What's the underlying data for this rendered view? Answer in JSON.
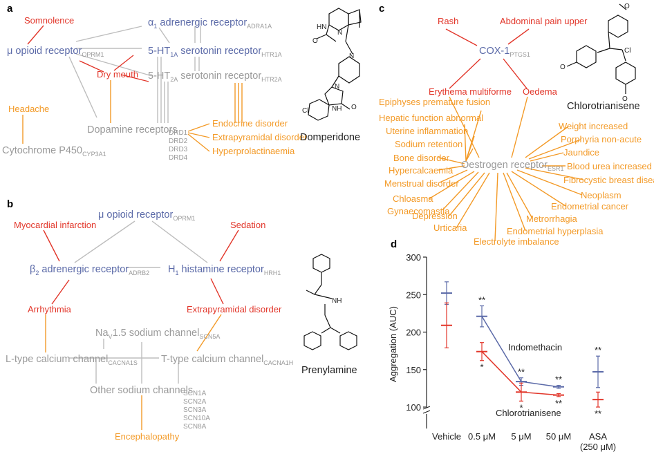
{
  "colors": {
    "blue": "#5b6aa8",
    "red": "#e2362a",
    "orange": "#f39a27",
    "grey": "#9a9a9a",
    "dark": "#222222"
  },
  "panel_a": {
    "label": "a",
    "drug": "Domperidone",
    "targets": {
      "alpha1": {
        "pre": "α",
        "sub1": "1",
        "main": " adrenergic receptor",
        "gene": "ADRA1A"
      },
      "mu": {
        "main": "μ opioid receptor",
        "gene": "OPRM1"
      },
      "ht1a": {
        "pre": "5-HT",
        "sub1": "1A",
        "main": " serotonin receptor",
        "gene": "HTR1A"
      },
      "ht2a": {
        "pre": "5-HT",
        "sub1": "2A",
        "main": " serotonin receptor",
        "gene": "HTR2A"
      },
      "dopamine": {
        "main": "Dopamine receptors",
        "genes": [
          "DRD1",
          "DRD2",
          "DRD3",
          "DRD4"
        ]
      },
      "cyp": {
        "main": "Cytochrome P450",
        "gene": "CYP3A1"
      }
    },
    "effects": {
      "somnolence": "Somnolence",
      "drymouth": "Dry mouth",
      "headache": "Headache",
      "endocrine": "Endocrine disorder",
      "extrapyramidal": "Extrapyramidal disorder",
      "hyperprolactinaemia": "Hyperprolactinaemia"
    }
  },
  "panel_b": {
    "label": "b",
    "drug": "Prenylamine",
    "targets": {
      "mu": {
        "main": "μ opioid receptor",
        "gene": "OPRM1"
      },
      "beta2": {
        "pre": "β",
        "sub1": "2",
        "main": " adrenergic receptor",
        "gene": "ADRB2"
      },
      "h1": {
        "pre": "H",
        "sub1": "1",
        "main": " histamine receptor",
        "gene": "HRH1"
      },
      "nav": {
        "pre": "Na",
        "sub1": "V",
        "main": "1.5 sodium channel",
        "gene": "SCN5A"
      },
      "ltype": {
        "main": "L-type calcium channel",
        "gene": "CACNA1S"
      },
      "ttype": {
        "main": "T-type calcium channel",
        "gene": "CACNA1H"
      },
      "othersodium": {
        "main": "Other sodium channels",
        "genes": [
          "SCN1A",
          "SCN2A",
          "SCN3A",
          "SCN10A",
          "SCN8A"
        ]
      }
    },
    "effects": {
      "mi": "Myocardial infarction",
      "sedation": "Sedation",
      "arrhythmia": "Arrhythmia",
      "extrapyramidal": "Extrapyramidal disorder",
      "encephalopathy": "Encephalopathy"
    }
  },
  "panel_c": {
    "label": "c",
    "drug": "Chlorotrianisene",
    "cox": {
      "main": "COX-1",
      "gene": "PTGS1"
    },
    "oestrogen": {
      "main": "Oestrogen receptor",
      "gene": "ESR1"
    },
    "cox_effects": [
      "Rash",
      "Abdominal pain upper",
      "Erythema multiforme",
      "Oedema"
    ],
    "esr_effects": [
      "Epiphyses premature fusion",
      "Hepatic function abnormal",
      "Uterine inflammation",
      "Sodium retention",
      "Bone disorder",
      "Hypercalcaemia",
      "Menstrual disorder",
      "Chloasma",
      "Gynaecomastia",
      "Depression",
      "Urticaria",
      "Electrolyte imbalance",
      "Endometrial hyperplasia",
      "Metrorrhagia",
      "Endometrial cancer",
      "Neoplasm",
      "Fibrocystic breast disease",
      "Blood urea increased",
      "Jaundice",
      "Porphyria non-acute",
      "Weight increased"
    ]
  },
  "chart_data": {
    "type": "line",
    "panel_label": "d",
    "ylabel": "Aggregation (AUC)",
    "ylim": [
      100,
      300
    ],
    "yticks": [
      100,
      150,
      200,
      250,
      300
    ],
    "axis_break": true,
    "categories": [
      "Vehicle",
      "0.5 μM",
      "5 μM",
      "50 μM",
      "ASA (250 μM)"
    ],
    "series": [
      {
        "name": "Indomethacin",
        "color": "#5b6aa8",
        "values": [
          252,
          221,
          134,
          127,
          147
        ],
        "errors": [
          15,
          14,
          5,
          2,
          21
        ],
        "connected": [
          false,
          true,
          true,
          true,
          false
        ],
        "stars_above": [
          "",
          "**",
          "**",
          "**",
          "**"
        ]
      },
      {
        "name": "Chlorotrianisene",
        "color": "#e2362a",
        "values": [
          209,
          174,
          120,
          116,
          110
        ],
        "errors": [
          30,
          12,
          12,
          2,
          10
        ],
        "connected": [
          false,
          true,
          true,
          true,
          false
        ],
        "stars_below": [
          "",
          "*",
          "*",
          "**",
          "**"
        ]
      }
    ]
  }
}
